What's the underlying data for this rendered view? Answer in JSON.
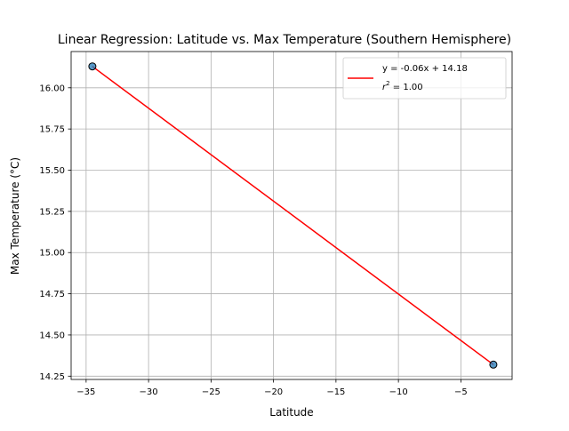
{
  "chart_data": {
    "type": "scatter",
    "title": "Linear Regression: Latitude vs. Max Temperature (Southern Hemisphere)",
    "xlabel": "Latitude",
    "ylabel": "Max Temperature (°C)",
    "xlim": [
      -36.2,
      -0.9
    ],
    "ylim": [
      14.23,
      16.22
    ],
    "xticks": [
      -35,
      -30,
      -25,
      -20,
      -15,
      -10,
      -5
    ],
    "xtick_labels": [
      "−35",
      "−30",
      "−25",
      "−20",
      "−15",
      "−10",
      "−5"
    ],
    "yticks": [
      14.25,
      14.5,
      14.75,
      15.0,
      15.25,
      15.5,
      15.75,
      16.0
    ],
    "ytick_labels": [
      "14.25",
      "14.50",
      "14.75",
      "15.00",
      "15.25",
      "15.50",
      "15.75",
      "16.00"
    ],
    "grid": true,
    "legend_position": "top-right",
    "series": [
      {
        "kind": "scatter",
        "points": [
          {
            "x": -34.5,
            "y": 16.13
          },
          {
            "x": -2.4,
            "y": 14.32
          }
        ],
        "color": "#1f77b4"
      },
      {
        "kind": "line",
        "legend_label": "y = -0.06x + 14.18",
        "color": "#ff0000",
        "points": [
          {
            "x": -34.5,
            "y": 16.13
          },
          {
            "x": -2.4,
            "y": 14.32
          }
        ]
      }
    ],
    "legend": {
      "line1": "y = -0.06x + 14.18",
      "line2_base": "r",
      "line2_sup": "2",
      "line2_rest": " = 1.00"
    }
  }
}
